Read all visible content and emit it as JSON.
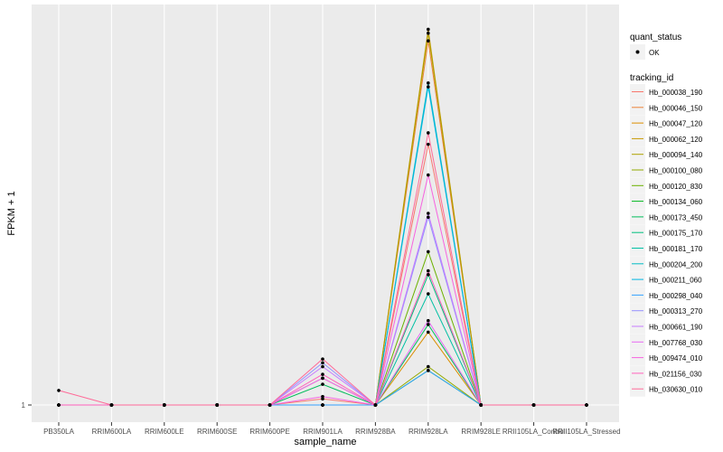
{
  "chart_data": {
    "type": "line",
    "title": "",
    "xlabel": "sample_name",
    "ylabel": "FPKM + 1",
    "y_tick_labels": [
      "1"
    ],
    "ylim": [
      0,
      1.0
    ],
    "grid": true,
    "categories": [
      "PB350LA",
      "RRIM600LA",
      "RRIM600LE",
      "RRIM600SE",
      "RRIM600PE",
      "RRIM901LA",
      "RRIM928BA",
      "RRIM928LA",
      "RRIM928LE",
      "RRII105LA_Control",
      "RRII105LA_Stressed"
    ],
    "legend_position": "right",
    "legend_quant_title": "quant_status",
    "legend_quant_item": "OK",
    "legend_series_title": "tracking_id",
    "series": [
      {
        "name": "Hb_000038_190",
        "color": "#F8766D",
        "values": [
          0,
          0,
          0,
          0,
          0,
          0.016,
          0,
          0.68,
          0,
          0,
          0
        ]
      },
      {
        "name": "Hb_000046_150",
        "color": "#EC8239",
        "values": [
          0,
          0,
          0,
          0,
          0,
          0.07,
          0,
          0.95,
          0,
          0,
          0
        ]
      },
      {
        "name": "Hb_000047_120",
        "color": "#DB8E00",
        "values": [
          0,
          0,
          0,
          0,
          0,
          0,
          0,
          0.19,
          0,
          0,
          0
        ]
      },
      {
        "name": "Hb_000062_120",
        "color": "#C79800",
        "values": [
          0,
          0,
          0,
          0,
          0,
          0,
          0,
          0.98,
          0,
          0,
          0
        ]
      },
      {
        "name": "Hb_000094_140",
        "color": "#AFA100",
        "values": [
          0,
          0,
          0,
          0,
          0,
          0,
          0,
          0.97,
          0,
          0,
          0
        ]
      },
      {
        "name": "Hb_000100_080",
        "color": "#93AA00",
        "values": [
          0,
          0,
          0,
          0,
          0,
          0,
          0,
          0.1,
          0,
          0,
          0
        ]
      },
      {
        "name": "Hb_000120_830",
        "color": "#6BB100",
        "values": [
          0,
          0,
          0,
          0,
          0,
          0,
          0,
          0.4,
          0,
          0,
          0
        ]
      },
      {
        "name": "Hb_000134_060",
        "color": "#00B81F",
        "values": [
          0,
          0,
          0,
          0,
          0,
          0,
          0,
          0.09,
          0,
          0,
          0
        ]
      },
      {
        "name": "Hb_000173_450",
        "color": "#00BC59",
        "values": [
          0,
          0,
          0,
          0,
          0,
          0.054,
          0,
          0.21,
          0,
          0,
          0
        ]
      },
      {
        "name": "Hb_000175_170",
        "color": "#00BF7D",
        "values": [
          0,
          0,
          0,
          0,
          0,
          0,
          0,
          0.34,
          0,
          0,
          0
        ]
      },
      {
        "name": "Hb_000181_170",
        "color": "#00C0A3",
        "values": [
          0,
          0,
          0,
          0,
          0,
          0,
          0,
          0.29,
          0,
          0,
          0
        ]
      },
      {
        "name": "Hb_000204_200",
        "color": "#00BCC4",
        "values": [
          0,
          0,
          0,
          0,
          0,
          0,
          0,
          0.84,
          0,
          0,
          0
        ]
      },
      {
        "name": "Hb_000211_060",
        "color": "#00B6E2",
        "values": [
          0,
          0,
          0,
          0,
          0,
          0,
          0,
          0.83,
          0,
          0,
          0
        ]
      },
      {
        "name": "Hb_000298_040",
        "color": "#35A2FF",
        "values": [
          0,
          0,
          0,
          0,
          0,
          0,
          0,
          0.09,
          0,
          0,
          0
        ]
      },
      {
        "name": "Hb_000313_270",
        "color": "#9590FF",
        "values": [
          0,
          0,
          0,
          0,
          0,
          0.11,
          0,
          0.49,
          0,
          0,
          0
        ]
      },
      {
        "name": "Hb_000661_190",
        "color": "#C77CFF",
        "values": [
          0,
          0,
          0,
          0,
          0,
          0.1,
          0,
          0.5,
          0,
          0,
          0
        ]
      },
      {
        "name": "Hb_007768_030",
        "color": "#E76BF3",
        "values": [
          0,
          0,
          0,
          0,
          0,
          0.07,
          0,
          0.22,
          0,
          0,
          0
        ]
      },
      {
        "name": "Hb_009474_010",
        "color": "#F763E0",
        "values": [
          0,
          0,
          0,
          0,
          0,
          0.022,
          0,
          0.6,
          0,
          0,
          0
        ]
      },
      {
        "name": "Hb_021156_030",
        "color": "#FF62BC",
        "values": [
          0,
          0,
          0,
          0,
          0,
          0.08,
          0,
          0.35,
          0,
          0,
          0
        ]
      },
      {
        "name": "Hb_030630_010",
        "color": "#FF6A98",
        "values": [
          0.038,
          0,
          0,
          0,
          0,
          0.12,
          0,
          0.71,
          0,
          0,
          0
        ]
      }
    ]
  }
}
